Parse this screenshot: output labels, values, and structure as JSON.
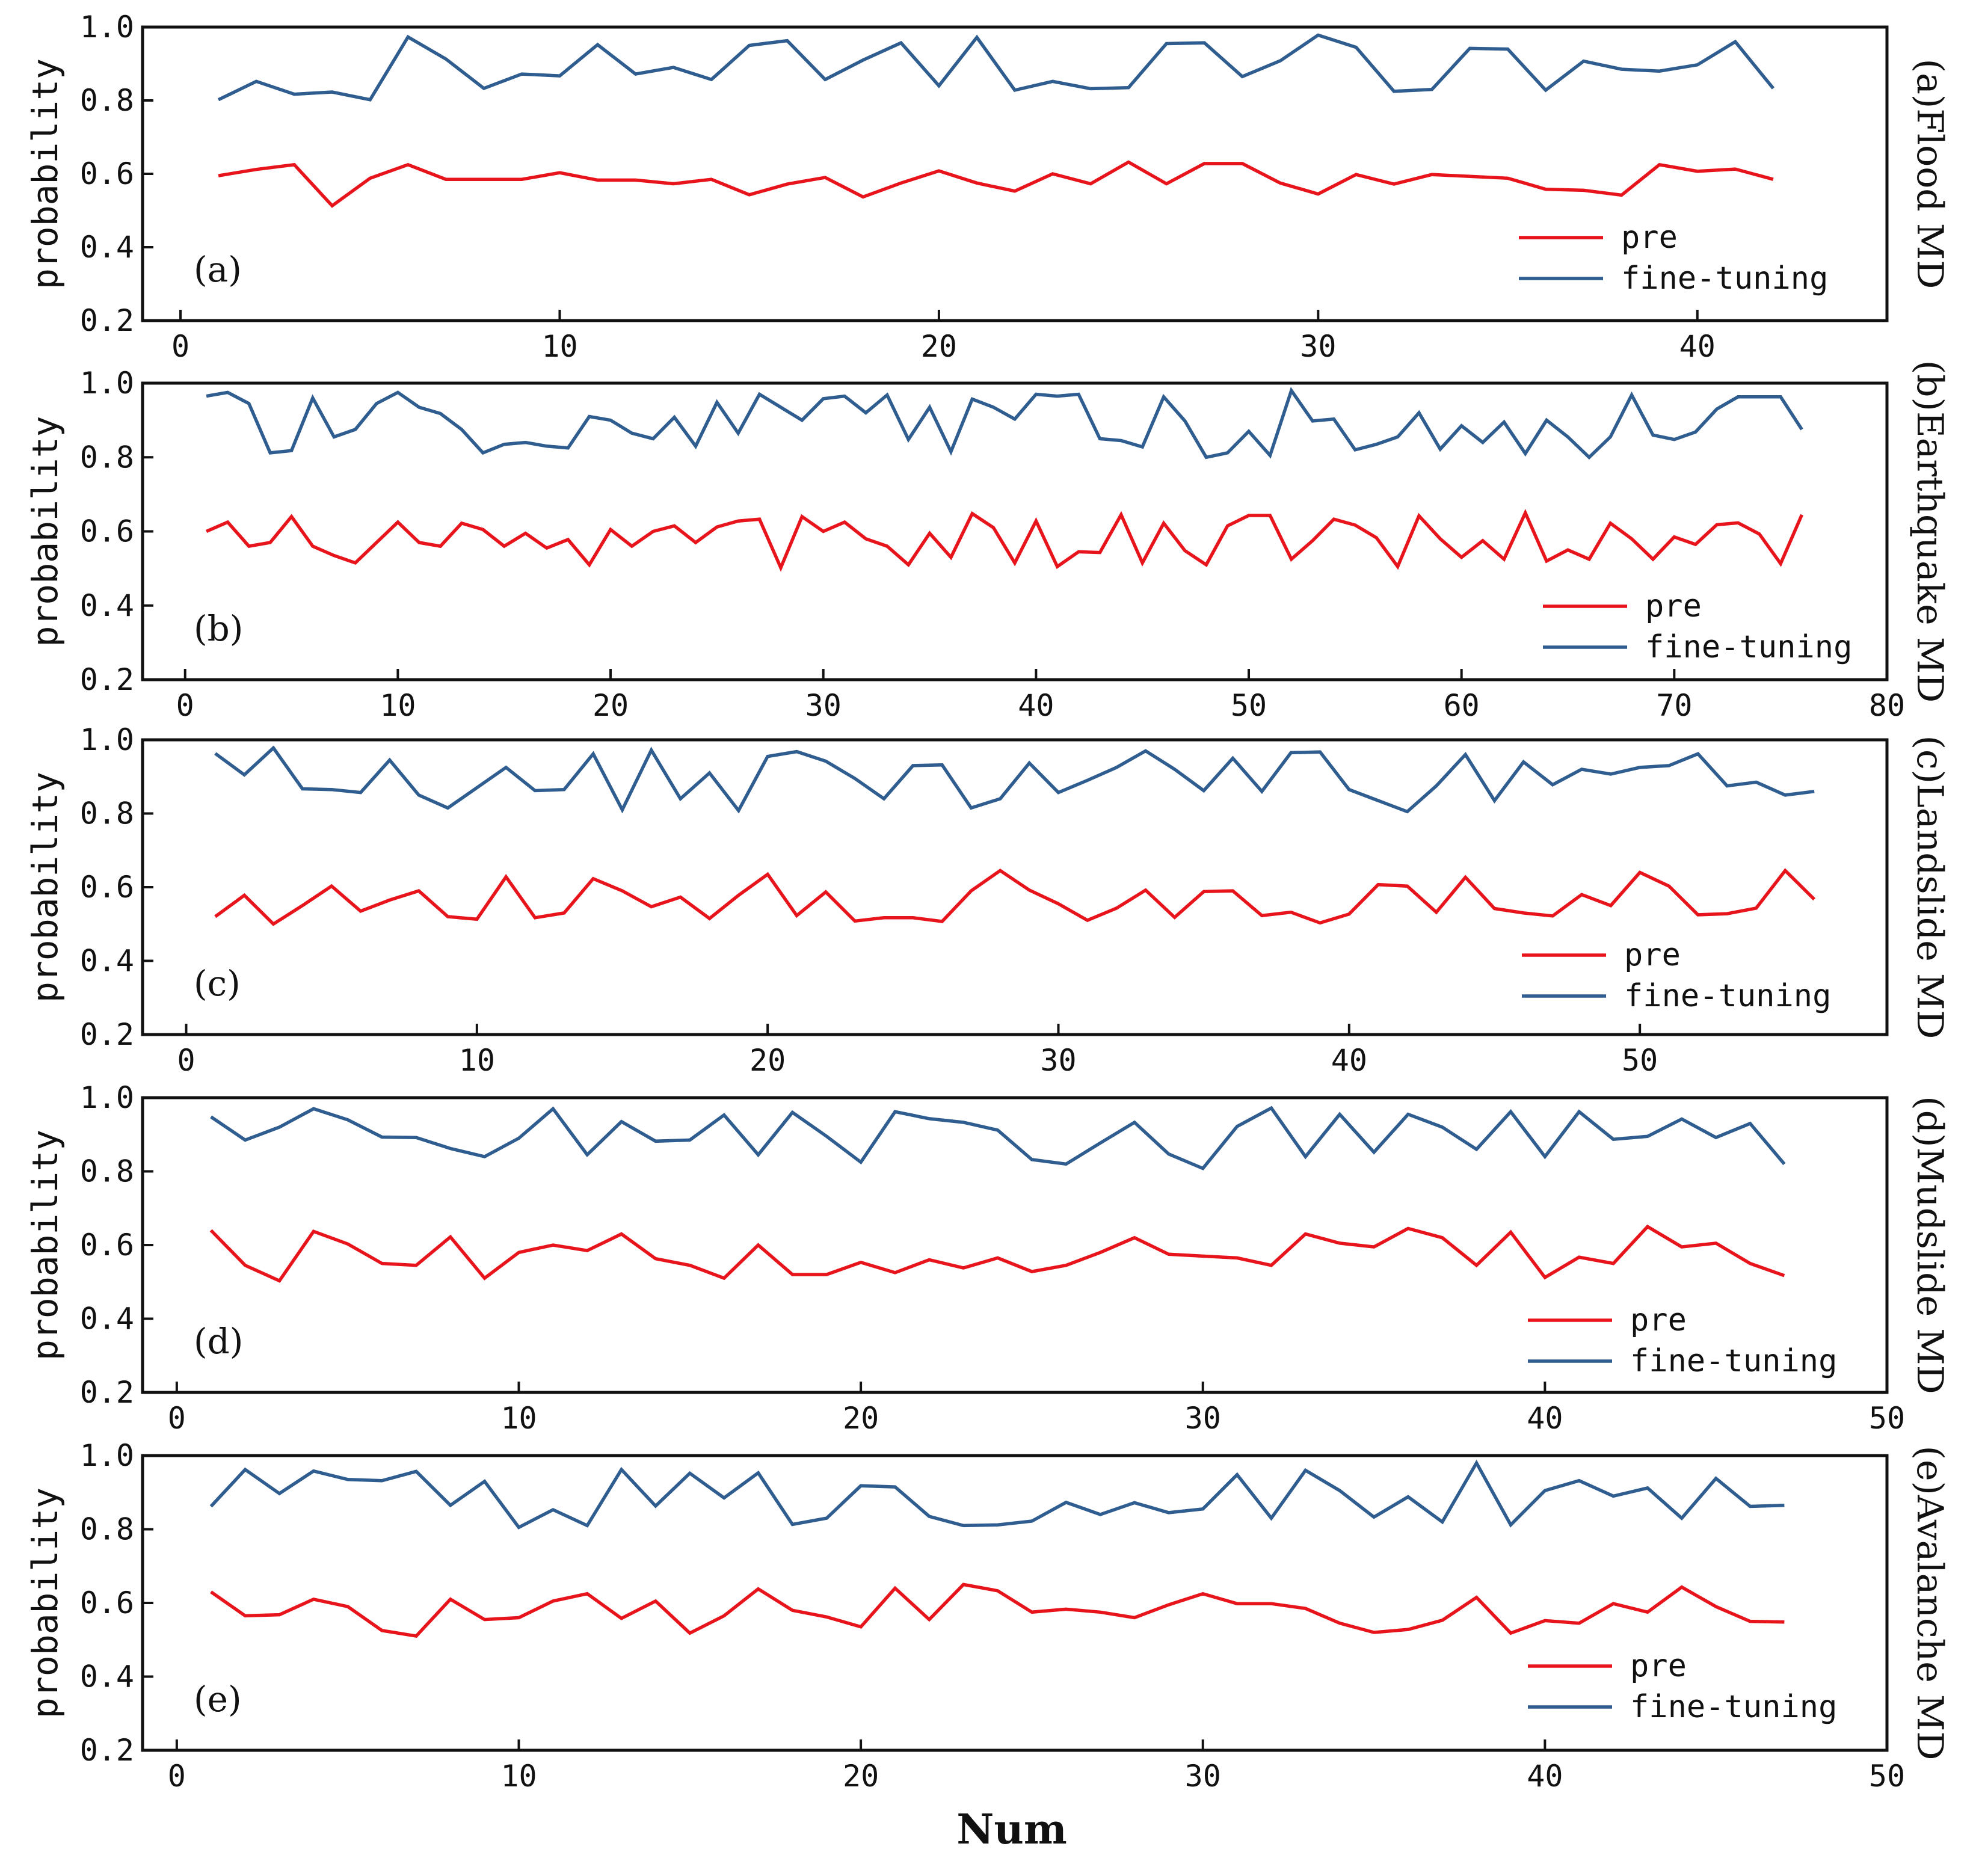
{
  "colors": {
    "pre": "#e8141c",
    "fine_tuning": "#2f5d8f",
    "axis": "#111111"
  },
  "figure": {
    "xlabel": "Num"
  },
  "chart_data": [
    {
      "type": "line",
      "panel_label": "(a)",
      "title": "(a)Flood MD",
      "ylabel": "probability",
      "xlim": [
        -1,
        45
      ],
      "ylim": [
        0.2,
        1.0
      ],
      "xticks": [
        0,
        10,
        20,
        30,
        40
      ],
      "yticks": [
        0.2,
        0.4,
        0.6,
        0.8,
        1.0
      ],
      "ytick_labels": [
        "0.2",
        "0.4",
        "0.6",
        "0.8",
        "1.0"
      ],
      "legend_position": "bottom-right",
      "series": [
        {
          "name": "pre",
          "color": "#e8141c",
          "values": [
            0.595,
            0.612,
            0.625,
            0.513,
            0.588,
            0.625,
            0.585,
            0.585,
            0.585,
            0.603,
            0.583,
            0.583,
            0.573,
            0.585,
            0.543,
            0.572,
            0.59,
            0.537,
            0.575,
            0.608,
            0.575,
            0.553,
            0.6,
            0.573,
            0.632,
            0.573,
            0.628,
            0.628,
            0.575,
            0.545,
            0.598,
            0.572,
            0.598,
            0.593,
            0.588,
            0.558,
            0.555,
            0.542,
            0.625,
            0.607,
            0.613,
            0.585
          ]
        },
        {
          "name": "fine-tuning",
          "color": "#2f5d8f",
          "values": [
            0.802,
            0.852,
            0.817,
            0.823,
            0.802,
            0.973,
            0.913,
            0.833,
            0.872,
            0.867,
            0.952,
            0.872,
            0.89,
            0.857,
            0.95,
            0.963,
            0.857,
            0.91,
            0.957,
            0.84,
            0.972,
            0.828,
            0.852,
            0.832,
            0.835,
            0.955,
            0.957,
            0.865,
            0.908,
            0.978,
            0.945,
            0.825,
            0.83,
            0.942,
            0.94,
            0.828,
            0.907,
            0.885,
            0.88,
            0.897,
            0.96,
            0.833
          ]
        }
      ]
    },
    {
      "type": "line",
      "panel_label": "(b)",
      "title": "(b)Earthquake MD",
      "ylabel": "probability",
      "xlim": [
        -2,
        80
      ],
      "ylim": [
        0.2,
        1.0
      ],
      "xticks": [
        0,
        10,
        20,
        30,
        40,
        50,
        60,
        70,
        80
      ],
      "yticks": [
        0.2,
        0.4,
        0.6,
        0.8,
        1.0
      ],
      "ytick_labels": [
        "0.2",
        "0.4",
        "0.6",
        "0.8",
        "1.0"
      ],
      "legend_position": "bottom-right",
      "series": [
        {
          "name": "pre",
          "color": "#e8141c",
          "values": [
            0.6,
            0.625,
            0.56,
            0.57,
            0.64,
            0.56,
            0.535,
            0.515,
            0.57,
            0.625,
            0.57,
            0.56,
            0.622,
            0.605,
            0.56,
            0.595,
            0.555,
            0.578,
            0.51,
            0.605,
            0.56,
            0.6,
            0.615,
            0.57,
            0.612,
            0.628,
            0.633,
            0.502,
            0.64,
            0.6,
            0.625,
            0.58,
            0.56,
            0.51,
            0.595,
            0.53,
            0.648,
            0.61,
            0.515,
            0.628,
            0.505,
            0.545,
            0.543,
            0.645,
            0.515,
            0.622,
            0.548,
            0.51,
            0.615,
            0.643,
            0.643,
            0.525,
            0.575,
            0.633,
            0.617,
            0.583,
            0.505,
            0.642,
            0.58,
            0.53,
            0.575,
            0.525,
            0.65,
            0.52,
            0.55,
            0.525,
            0.622,
            0.58,
            0.525,
            0.585,
            0.565,
            0.618,
            0.623,
            0.593,
            0.513,
            0.645
          ]
        },
        {
          "name": "fine-tuning",
          "color": "#2f5d8f",
          "values": [
            0.965,
            0.975,
            0.945,
            0.812,
            0.818,
            0.96,
            0.855,
            0.875,
            0.945,
            0.975,
            0.935,
            0.918,
            0.875,
            0.812,
            0.835,
            0.84,
            0.83,
            0.825,
            0.91,
            0.9,
            0.865,
            0.85,
            0.908,
            0.83,
            0.948,
            0.865,
            0.97,
            0.935,
            0.9,
            0.958,
            0.965,
            0.92,
            0.968,
            0.848,
            0.935,
            0.815,
            0.957,
            0.935,
            0.903,
            0.97,
            0.965,
            0.97,
            0.85,
            0.845,
            0.828,
            0.963,
            0.898,
            0.8,
            0.812,
            0.87,
            0.805,
            0.98,
            0.898,
            0.903,
            0.82,
            0.835,
            0.855,
            0.92,
            0.822,
            0.885,
            0.84,
            0.895,
            0.81,
            0.9,
            0.855,
            0.8,
            0.855,
            0.968,
            0.86,
            0.848,
            0.868,
            0.93,
            0.963,
            0.963,
            0.963,
            0.875
          ]
        }
      ]
    },
    {
      "type": "line",
      "panel_label": "(c)",
      "title": "(c)Landslide MD",
      "ylabel": "probability",
      "xlim": [
        -1.5,
        58.5
      ],
      "ylim": [
        0.2,
        1.0
      ],
      "xticks": [
        0,
        10,
        20,
        30,
        40,
        50
      ],
      "yticks": [
        0.2,
        0.4,
        0.6,
        0.8,
        1.0
      ],
      "ytick_labels": [
        "0.2",
        "0.4",
        "0.6",
        "0.8",
        "1.0"
      ],
      "legend_position": "bottom-right",
      "series": [
        {
          "name": "pre",
          "color": "#e8141c",
          "values": [
            0.52,
            0.578,
            0.5,
            0.55,
            0.603,
            0.535,
            0.565,
            0.59,
            0.52,
            0.513,
            0.628,
            0.517,
            0.53,
            0.623,
            0.59,
            0.547,
            0.573,
            0.515,
            0.578,
            0.635,
            0.523,
            0.587,
            0.508,
            0.517,
            0.517,
            0.507,
            0.59,
            0.645,
            0.592,
            0.555,
            0.51,
            0.543,
            0.592,
            0.518,
            0.588,
            0.59,
            0.523,
            0.532,
            0.503,
            0.527,
            0.607,
            0.603,
            0.532,
            0.627,
            0.542,
            0.53,
            0.522,
            0.58,
            0.55,
            0.64,
            0.603,
            0.525,
            0.528,
            0.543,
            0.645,
            0.567
          ]
        },
        {
          "name": "fine-tuning",
          "color": "#2f5d8f",
          "values": [
            0.963,
            0.905,
            0.978,
            0.867,
            0.865,
            0.857,
            0.945,
            0.85,
            0.815,
            0.87,
            0.925,
            0.862,
            0.865,
            0.962,
            0.81,
            0.972,
            0.84,
            0.91,
            0.808,
            0.955,
            0.968,
            0.942,
            0.895,
            0.84,
            0.93,
            0.932,
            0.815,
            0.84,
            0.937,
            0.857,
            0.89,
            0.925,
            0.97,
            0.92,
            0.862,
            0.95,
            0.86,
            0.965,
            0.967,
            0.865,
            0.835,
            0.805,
            0.875,
            0.96,
            0.835,
            0.94,
            0.878,
            0.92,
            0.907,
            0.925,
            0.93,
            0.962,
            0.875,
            0.885,
            0.85,
            0.86
          ]
        }
      ]
    },
    {
      "type": "line",
      "panel_label": "(d)",
      "title": "(d)Mudslide MD",
      "ylabel": "probability",
      "xlim": [
        -1,
        50
      ],
      "ylim": [
        0.2,
        1.0
      ],
      "xticks": [
        0,
        10,
        20,
        30,
        40,
        50
      ],
      "yticks": [
        0.2,
        0.4,
        0.6,
        0.8,
        1.0
      ],
      "ytick_labels": [
        "0.2",
        "0.4",
        "0.6",
        "0.8",
        "1.0"
      ],
      "legend_position": "bottom-right",
      "series": [
        {
          "name": "pre",
          "color": "#e8141c",
          "values": [
            0.64,
            0.545,
            0.503,
            0.637,
            0.603,
            0.55,
            0.545,
            0.622,
            0.51,
            0.58,
            0.6,
            0.585,
            0.63,
            0.563,
            0.545,
            0.51,
            0.6,
            0.52,
            0.52,
            0.553,
            0.525,
            0.56,
            0.538,
            0.565,
            0.528,
            0.545,
            0.58,
            0.62,
            0.575,
            0.57,
            0.565,
            0.545,
            0.63,
            0.605,
            0.595,
            0.645,
            0.62,
            0.545,
            0.635,
            0.512,
            0.567,
            0.55,
            0.65,
            0.595,
            0.605,
            0.55,
            0.517
          ]
        },
        {
          "name": "fine-tuning",
          "color": "#2f5d8f",
          "values": [
            0.948,
            0.885,
            0.92,
            0.97,
            0.94,
            0.893,
            0.892,
            0.862,
            0.84,
            0.89,
            0.97,
            0.845,
            0.935,
            0.882,
            0.885,
            0.953,
            0.845,
            0.96,
            0.895,
            0.825,
            0.962,
            0.943,
            0.933,
            0.912,
            0.832,
            0.82,
            0.877,
            0.933,
            0.847,
            0.808,
            0.922,
            0.972,
            0.84,
            0.955,
            0.852,
            0.955,
            0.92,
            0.86,
            0.962,
            0.84,
            0.962,
            0.887,
            0.895,
            0.942,
            0.892,
            0.93,
            0.82
          ]
        }
      ]
    },
    {
      "type": "line",
      "panel_label": "(e)",
      "title": "(e)Avalanche MD",
      "ylabel": "probability",
      "xlim": [
        -1,
        50
      ],
      "ylim": [
        0.2,
        1.0
      ],
      "xticks": [
        0,
        10,
        20,
        30,
        40,
        50
      ],
      "yticks": [
        0.2,
        0.4,
        0.6,
        0.8,
        1.0
      ],
      "ytick_labels": [
        "0.2",
        "0.4",
        "0.6",
        "0.8",
        "1.0"
      ],
      "legend_position": "bottom-right",
      "series": [
        {
          "name": "pre",
          "color": "#e8141c",
          "values": [
            0.63,
            0.565,
            0.568,
            0.61,
            0.59,
            0.525,
            0.51,
            0.61,
            0.555,
            0.56,
            0.605,
            0.625,
            0.558,
            0.605,
            0.518,
            0.565,
            0.638,
            0.58,
            0.562,
            0.535,
            0.64,
            0.555,
            0.65,
            0.633,
            0.575,
            0.583,
            0.575,
            0.56,
            0.595,
            0.625,
            0.598,
            0.598,
            0.585,
            0.545,
            0.52,
            0.528,
            0.553,
            0.615,
            0.518,
            0.552,
            0.545,
            0.598,
            0.575,
            0.643,
            0.59,
            0.55,
            0.548
          ]
        },
        {
          "name": "fine-tuning",
          "color": "#2f5d8f",
          "values": [
            0.862,
            0.962,
            0.897,
            0.958,
            0.935,
            0.932,
            0.957,
            0.865,
            0.93,
            0.805,
            0.853,
            0.81,
            0.962,
            0.863,
            0.952,
            0.885,
            0.953,
            0.813,
            0.83,
            0.918,
            0.915,
            0.835,
            0.81,
            0.812,
            0.822,
            0.873,
            0.84,
            0.872,
            0.845,
            0.855,
            0.948,
            0.83,
            0.96,
            0.905,
            0.833,
            0.888,
            0.82,
            0.98,
            0.812,
            0.905,
            0.932,
            0.89,
            0.912,
            0.83,
            0.938,
            0.862,
            0.865
          ]
        }
      ]
    }
  ]
}
